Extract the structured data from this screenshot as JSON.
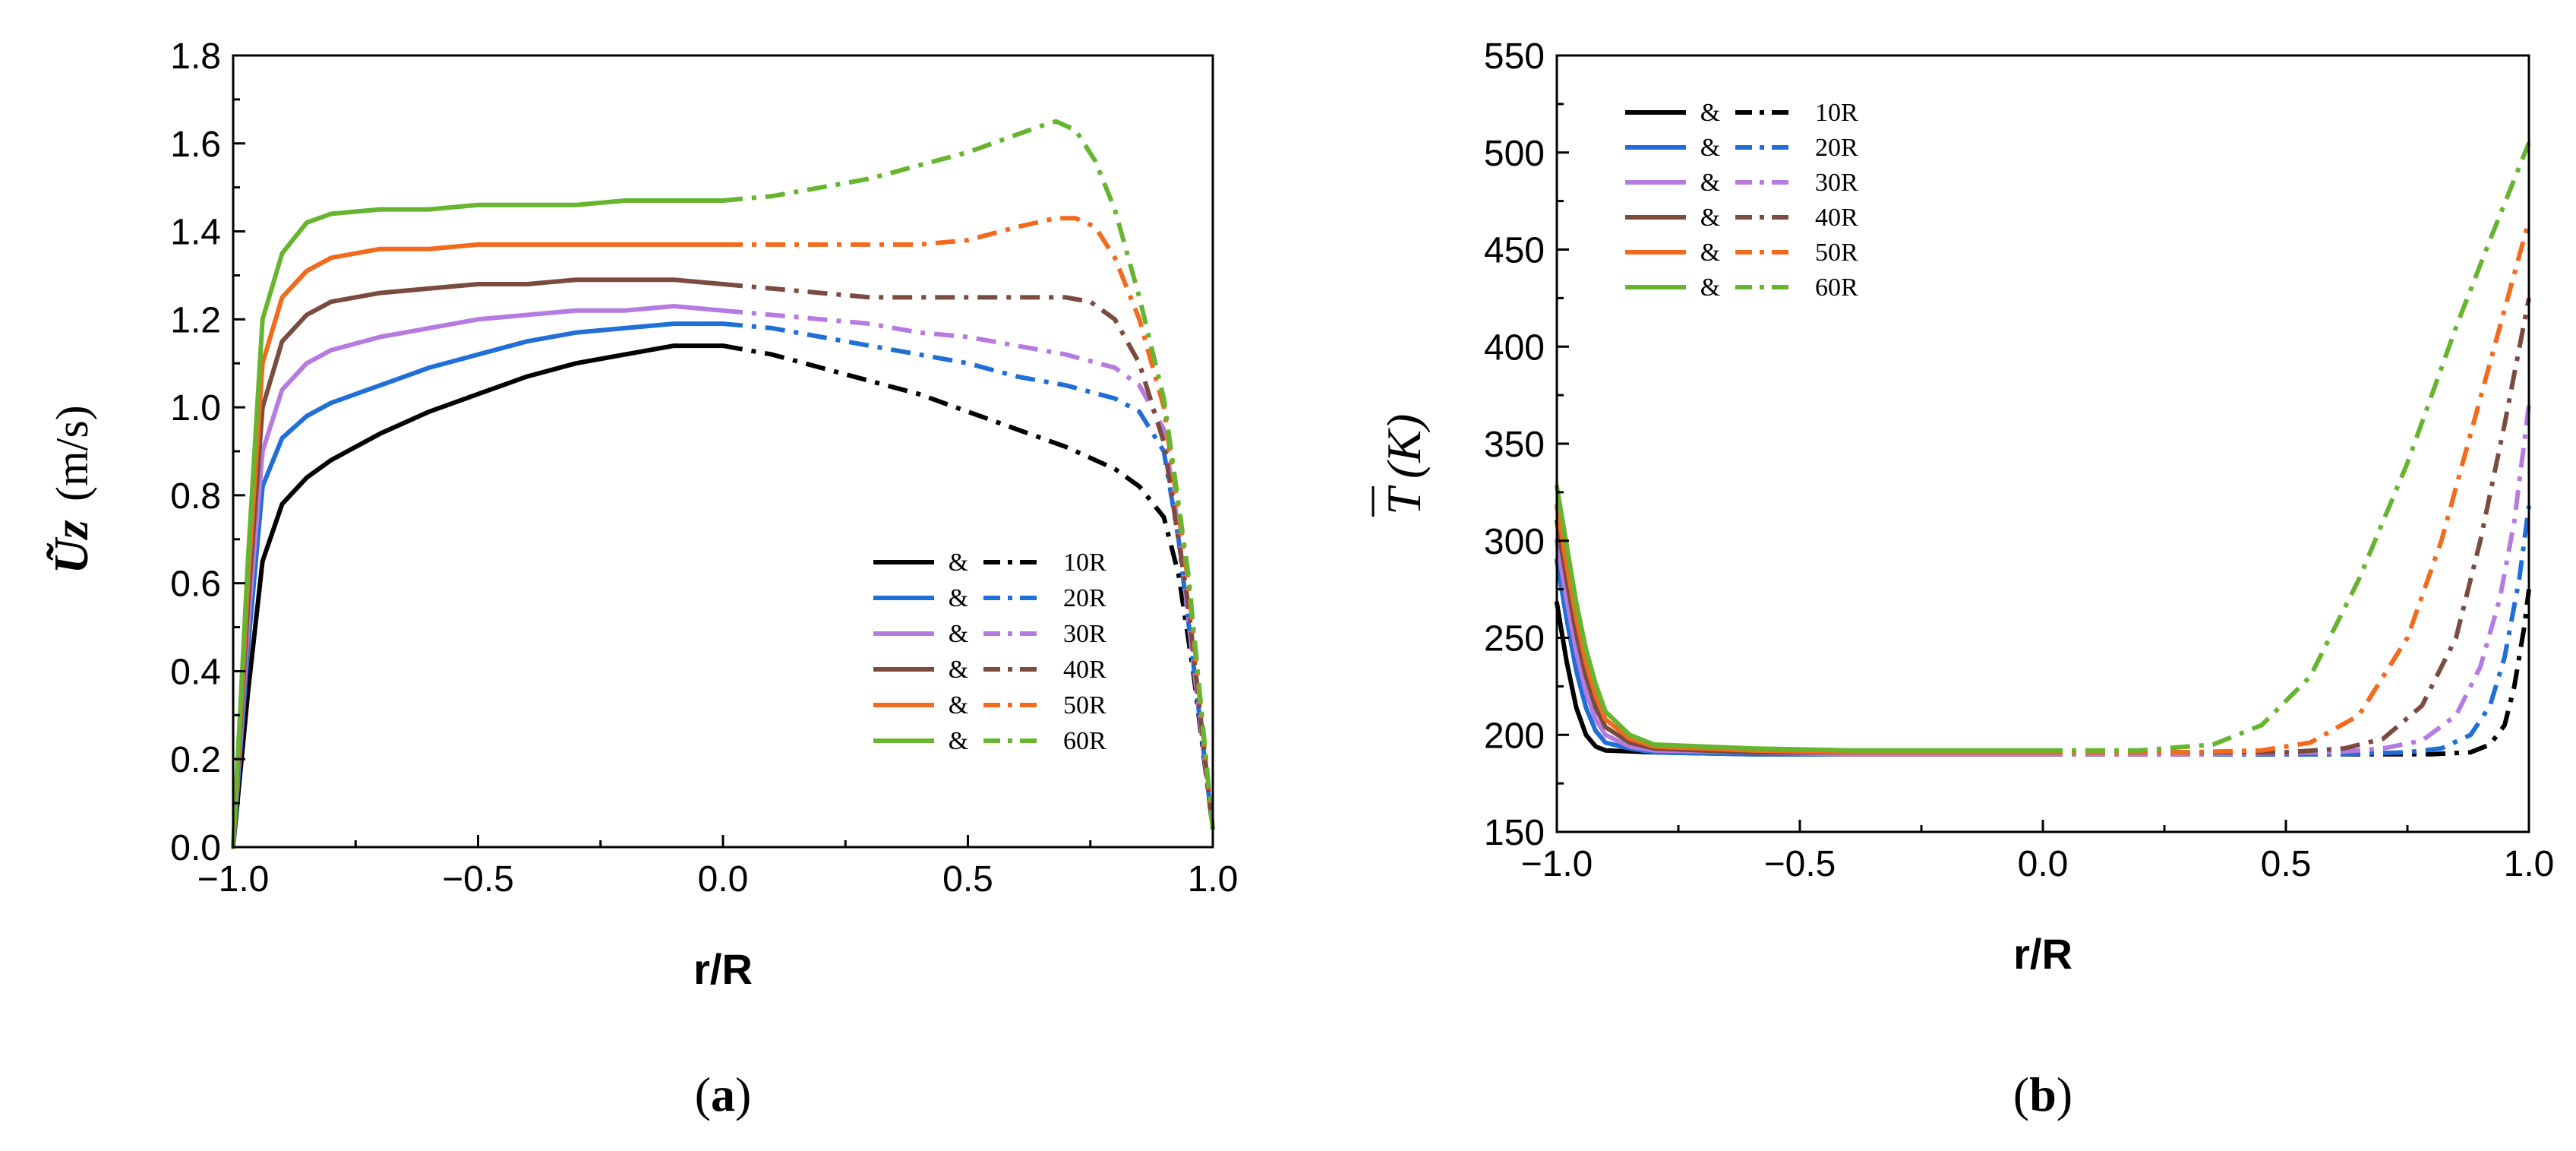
{
  "chart_data": [
    {
      "type": "line",
      "panel_label": "(a)",
      "panel_letter": "a",
      "xlabel": "r/R",
      "ylabel_symbol": "Ũz",
      "ylabel_unit": "(m/s)",
      "xlim": [
        -1.0,
        1.0
      ],
      "ylim": [
        0.0,
        1.8
      ],
      "xticks": [
        "−1.0",
        "−0.5",
        "0.0",
        "0.5",
        "1.0"
      ],
      "yticks": [
        "0.0",
        "0.2",
        "0.4",
        "0.6",
        "0.8",
        "1.0",
        "1.2",
        "1.4",
        "1.6",
        "1.8"
      ],
      "legend_position": "lower-right",
      "legend_sep": "&",
      "series": [
        {
          "name": "10R",
          "color": "#000000",
          "solid": {
            "x": [
              -1.0,
              -0.97,
              -0.94,
              -0.9,
              -0.85,
              -0.8,
              -0.7,
              -0.6,
              -0.5,
              -0.4,
              -0.3,
              -0.2,
              -0.1,
              0.0
            ],
            "y": [
              0.0,
              0.35,
              0.65,
              0.78,
              0.84,
              0.88,
              0.94,
              0.99,
              1.03,
              1.07,
              1.1,
              1.12,
              1.14,
              1.14
            ]
          },
          "dashed": {
            "x": [
              0.0,
              0.1,
              0.2,
              0.3,
              0.4,
              0.5,
              0.6,
              0.7,
              0.8,
              0.85,
              0.9,
              0.93,
              0.96,
              1.0
            ],
            "y": [
              1.14,
              1.12,
              1.09,
              1.06,
              1.03,
              0.99,
              0.95,
              0.91,
              0.86,
              0.82,
              0.75,
              0.62,
              0.4,
              0.04
            ]
          }
        },
        {
          "name": "20R",
          "color": "#1f6fd6",
          "solid": {
            "x": [
              -1.0,
              -0.97,
              -0.94,
              -0.9,
              -0.85,
              -0.8,
              -0.7,
              -0.6,
              -0.5,
              -0.4,
              -0.3,
              -0.2,
              -0.1,
              0.0
            ],
            "y": [
              0.0,
              0.45,
              0.82,
              0.93,
              0.98,
              1.01,
              1.05,
              1.09,
              1.12,
              1.15,
              1.17,
              1.18,
              1.19,
              1.19
            ]
          },
          "dashed": {
            "x": [
              0.0,
              0.1,
              0.2,
              0.3,
              0.4,
              0.5,
              0.6,
              0.7,
              0.8,
              0.85,
              0.9,
              0.93,
              0.96,
              1.0
            ],
            "y": [
              1.19,
              1.18,
              1.16,
              1.14,
              1.12,
              1.1,
              1.07,
              1.05,
              1.02,
              0.99,
              0.9,
              0.7,
              0.42,
              0.04
            ]
          }
        },
        {
          "name": "30R",
          "color": "#b57be0",
          "solid": {
            "x": [
              -1.0,
              -0.97,
              -0.94,
              -0.9,
              -0.85,
              -0.8,
              -0.7,
              -0.6,
              -0.5,
              -0.4,
              -0.3,
              -0.2,
              -0.1,
              0.0
            ],
            "y": [
              0.0,
              0.5,
              0.9,
              1.04,
              1.1,
              1.13,
              1.16,
              1.18,
              1.2,
              1.21,
              1.22,
              1.22,
              1.23,
              1.22
            ]
          },
          "dashed": {
            "x": [
              0.0,
              0.1,
              0.2,
              0.3,
              0.4,
              0.5,
              0.6,
              0.7,
              0.8,
              0.85,
              0.9,
              0.93,
              0.96,
              1.0
            ],
            "y": [
              1.22,
              1.21,
              1.2,
              1.19,
              1.17,
              1.16,
              1.14,
              1.12,
              1.09,
              1.05,
              0.95,
              0.72,
              0.42,
              0.04
            ]
          }
        },
        {
          "name": "40R",
          "color": "#7b4b3f",
          "solid": {
            "x": [
              -1.0,
              -0.97,
              -0.94,
              -0.9,
              -0.85,
              -0.8,
              -0.7,
              -0.6,
              -0.5,
              -0.4,
              -0.3,
              -0.2,
              -0.1,
              0.0
            ],
            "y": [
              0.0,
              0.55,
              1.0,
              1.15,
              1.21,
              1.24,
              1.26,
              1.27,
              1.28,
              1.28,
              1.29,
              1.29,
              1.29,
              1.28
            ]
          },
          "dashed": {
            "x": [
              0.0,
              0.1,
              0.2,
              0.3,
              0.4,
              0.5,
              0.6,
              0.7,
              0.75,
              0.8,
              0.85,
              0.9,
              0.95,
              1.0
            ],
            "y": [
              1.28,
              1.27,
              1.26,
              1.25,
              1.25,
              1.25,
              1.25,
              1.25,
              1.24,
              1.2,
              1.1,
              0.92,
              0.55,
              0.04
            ]
          }
        },
        {
          "name": "50R",
          "color": "#f46a1c",
          "solid": {
            "x": [
              -1.0,
              -0.97,
              -0.94,
              -0.9,
              -0.85,
              -0.8,
              -0.7,
              -0.6,
              -0.5,
              -0.4,
              -0.3,
              -0.2,
              -0.1,
              0.0
            ],
            "y": [
              0.0,
              0.6,
              1.1,
              1.25,
              1.31,
              1.34,
              1.36,
              1.36,
              1.37,
              1.37,
              1.37,
              1.37,
              1.37,
              1.37
            ]
          },
          "dashed": {
            "x": [
              0.0,
              0.1,
              0.2,
              0.3,
              0.4,
              0.5,
              0.6,
              0.68,
              0.72,
              0.76,
              0.8,
              0.85,
              0.9,
              0.95,
              1.0
            ],
            "y": [
              1.37,
              1.37,
              1.37,
              1.37,
              1.37,
              1.38,
              1.41,
              1.43,
              1.43,
              1.41,
              1.34,
              1.2,
              1.0,
              0.6,
              0.04
            ]
          }
        },
        {
          "name": "60R",
          "color": "#66b52e",
          "solid": {
            "x": [
              -1.0,
              -0.97,
              -0.94,
              -0.9,
              -0.85,
              -0.8,
              -0.7,
              -0.6,
              -0.5,
              -0.4,
              -0.3,
              -0.2,
              -0.1,
              0.0
            ],
            "y": [
              0.0,
              0.65,
              1.2,
              1.35,
              1.42,
              1.44,
              1.45,
              1.45,
              1.46,
              1.46,
              1.46,
              1.47,
              1.47,
              1.47
            ]
          },
          "dashed": {
            "x": [
              0.0,
              0.1,
              0.2,
              0.3,
              0.4,
              0.5,
              0.6,
              0.65,
              0.68,
              0.72,
              0.76,
              0.8,
              0.85,
              0.9,
              0.95,
              1.0
            ],
            "y": [
              1.47,
              1.48,
              1.5,
              1.52,
              1.55,
              1.58,
              1.62,
              1.64,
              1.65,
              1.63,
              1.56,
              1.45,
              1.25,
              1.02,
              0.62,
              0.04
            ]
          }
        }
      ]
    },
    {
      "type": "line",
      "panel_label": "(b)",
      "panel_letter": "b",
      "xlabel": "r/R",
      "ylabel_symbol": "T",
      "ylabel_unit": "(K)",
      "xlim": [
        -1.0,
        1.0
      ],
      "ylim": [
        150,
        550
      ],
      "xticks": [
        "−1.0",
        "−0.5",
        "0.0",
        "0.5",
        "1.0"
      ],
      "yticks": [
        "150",
        "200",
        "250",
        "300",
        "350",
        "400",
        "450",
        "500",
        "550"
      ],
      "legend_position": "top-left",
      "legend_sep": "&",
      "series": [
        {
          "name": "10R",
          "color": "#000000",
          "solid": {
            "x": [
              -1.0,
              -0.98,
              -0.96,
              -0.94,
              -0.92,
              -0.9,
              -0.8,
              -0.6,
              -0.4,
              -0.2,
              0.0
            ],
            "y": [
              268,
              238,
              214,
              200,
              194,
              192,
              191,
              190,
              190,
              190,
              190
            ]
          },
          "dashed": {
            "x": [
              0.0,
              0.3,
              0.6,
              0.8,
              0.88,
              0.92,
              0.95,
              0.97,
              0.99,
              1.0
            ],
            "y": [
              190,
              190,
              190,
              190,
              191,
              195,
              205,
              225,
              255,
              275
            ]
          }
        },
        {
          "name": "20R",
          "color": "#1f6fd6",
          "solid": {
            "x": [
              -1.0,
              -0.98,
              -0.96,
              -0.94,
              -0.92,
              -0.9,
              -0.85,
              -0.8,
              -0.6,
              -0.4,
              -0.2,
              0.0
            ],
            "y": [
              290,
              260,
              233,
              214,
              202,
              196,
              193,
              191,
              190,
              190,
              190,
              190
            ]
          },
          "dashed": {
            "x": [
              0.0,
              0.3,
              0.6,
              0.75,
              0.82,
              0.88,
              0.92,
              0.95,
              0.98,
              1.0
            ],
            "y": [
              190,
              190,
              190,
              191,
              193,
              200,
              215,
              240,
              280,
              318
            ]
          }
        },
        {
          "name": "30R",
          "color": "#b57be0",
          "solid": {
            "x": [
              -1.0,
              -0.98,
              -0.96,
              -0.94,
              -0.92,
              -0.9,
              -0.85,
              -0.8,
              -0.6,
              -0.4,
              -0.2,
              0.0
            ],
            "y": [
              300,
              270,
              243,
              222,
              208,
              200,
              194,
              192,
              191,
              190,
              190,
              190
            ]
          },
          "dashed": {
            "x": [
              0.0,
              0.3,
              0.6,
              0.7,
              0.78,
              0.85,
              0.9,
              0.94,
              0.97,
              1.0
            ],
            "y": [
              190,
              190,
              191,
              193,
              197,
              210,
              235,
              270,
              310,
              370
            ]
          }
        },
        {
          "name": "40R",
          "color": "#7b4b3f",
          "solid": {
            "x": [
              -1.0,
              -0.98,
              -0.96,
              -0.94,
              -0.92,
              -0.9,
              -0.85,
              -0.8,
              -0.6,
              -0.4,
              -0.2,
              0.0
            ],
            "y": [
              310,
              280,
              252,
              230,
              214,
              204,
              196,
              193,
              191,
              191,
              191,
              191
            ]
          },
          "dashed": {
            "x": [
              0.0,
              0.3,
              0.5,
              0.62,
              0.7,
              0.78,
              0.85,
              0.9,
              0.95,
              1.0
            ],
            "y": [
              191,
              191,
              191,
              193,
              198,
              215,
              250,
              300,
              360,
              425
            ]
          }
        },
        {
          "name": "50R",
          "color": "#f46a1c",
          "solid": {
            "x": [
              -1.0,
              -0.98,
              -0.96,
              -0.94,
              -0.92,
              -0.9,
              -0.85,
              -0.8,
              -0.6,
              -0.4,
              -0.2,
              0.0
            ],
            "y": [
              318,
              288,
              260,
              237,
              220,
              208,
              198,
              194,
              192,
              191,
              191,
              191
            ]
          },
          "dashed": {
            "x": [
              0.0,
              0.3,
              0.45,
              0.55,
              0.65,
              0.75,
              0.82,
              0.88,
              0.94,
              1.0
            ],
            "y": [
              191,
              191,
              192,
              196,
              210,
              250,
              300,
              355,
              410,
              465
            ]
          }
        },
        {
          "name": "60R",
          "color": "#66b52e",
          "solid": {
            "x": [
              -1.0,
              -0.98,
              -0.96,
              -0.94,
              -0.92,
              -0.9,
              -0.85,
              -0.8,
              -0.6,
              -0.4,
              -0.2,
              0.0
            ],
            "y": [
              328,
              298,
              268,
              244,
              226,
              212,
              200,
              195,
              193,
              192,
              192,
              192
            ]
          },
          "dashed": {
            "x": [
              0.0,
              0.2,
              0.35,
              0.45,
              0.55,
              0.65,
              0.75,
              0.85,
              0.92,
              1.0
            ],
            "y": [
              192,
              192,
              195,
              205,
              230,
              280,
              340,
              410,
              455,
              505
            ]
          }
        }
      ]
    }
  ]
}
